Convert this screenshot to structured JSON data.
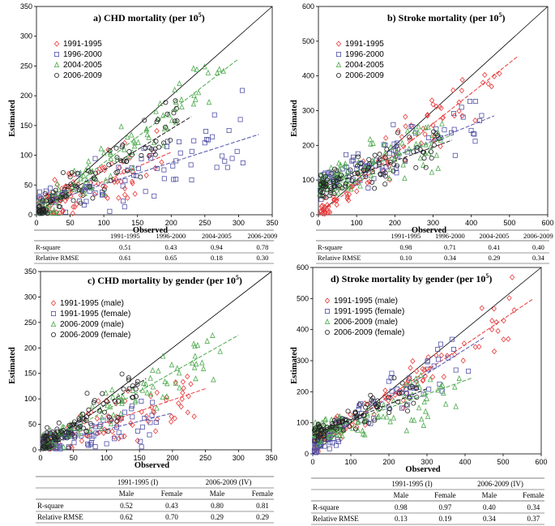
{
  "colors": {
    "c1": "#e8393a",
    "c2": "#5252a8",
    "c3": "#4caa4c",
    "c4": "#222222",
    "grid": "#cccccc"
  },
  "chart_data": [
    {
      "id": "a",
      "type": "scatter",
      "title": "a) CHD mortality  (per 10",
      "title_sup": "5",
      "title_end": ")",
      "xlabel": "Observed",
      "ylabel": "Estimated",
      "xlim": [
        0,
        350
      ],
      "ylim": [
        0,
        350
      ],
      "xticks": [
        "0",
        "50",
        "100",
        "150",
        "200",
        "250",
        "300",
        "350"
      ],
      "yticks": [
        "0",
        "50",
        "100",
        "150",
        "200",
        "250",
        "300",
        "350"
      ],
      "series": [
        {
          "name": "1991-1995",
          "marker": "diamond",
          "color": "#e8393a",
          "fit": [
            0,
            8,
            200,
            105
          ],
          "spread": 22,
          "xmax": 200
        },
        {
          "name": "1996-2000",
          "marker": "square",
          "color": "#5252a8",
          "fit": [
            0,
            15,
            330,
            135
          ],
          "spread": 25,
          "xmax": 330
        },
        {
          "name": "2004-2005",
          "marker": "triangle",
          "color": "#4caa4c",
          "fit": [
            0,
            0,
            300,
            262
          ],
          "spread": 20,
          "xmax": 300
        },
        {
          "name": "2006-2009",
          "marker": "circle",
          "color": "#222222",
          "fit": [
            0,
            5,
            230,
            165
          ],
          "spread": 20,
          "xmax": 230
        }
      ],
      "table": {
        "head": [
          "1991-1995",
          "1996-2000",
          "2004-2005",
          "2006-2009"
        ],
        "rows": [
          {
            "label": "R-square",
            "values": [
              "0.51",
              "0.43",
              "0.94",
              "0.78"
            ]
          },
          {
            "label": "Relative RMSE",
            "values": [
              "0.61",
              "0.65",
              "0.18",
              "0.30"
            ]
          }
        ]
      }
    },
    {
      "id": "b",
      "type": "scatter",
      "title": "b)  Stroke mortality (per 10",
      "title_sup": "5",
      "title_end": ")",
      "xlabel": "Observed",
      "ylabel": "Estimated",
      "xlim": [
        0,
        600
      ],
      "ylim": [
        0,
        600
      ],
      "xticks": [
        "0",
        "100",
        "200",
        "300",
        "400",
        "500",
        "600"
      ],
      "yticks": [
        "0",
        "100",
        "200",
        "300",
        "400",
        "500",
        "600"
      ],
      "series": [
        {
          "name": "1991-1995",
          "marker": "diamond",
          "color": "#e8393a",
          "fit": [
            0,
            0,
            520,
            455
          ],
          "spread": 35,
          "xmax": 520
        },
        {
          "name": "1996-2000",
          "marker": "square",
          "color": "#5252a8",
          "fit": [
            0,
            80,
            460,
            285
          ],
          "spread": 35,
          "xmax": 460
        },
        {
          "name": "2004-2005",
          "marker": "triangle",
          "color": "#4caa4c",
          "fit": [
            0,
            85,
            350,
            230
          ],
          "spread": 35,
          "xmax": 350
        },
        {
          "name": "2006-2009",
          "marker": "circle",
          "color": "#222222",
          "fit": [
            0,
            75,
            350,
            215
          ],
          "spread": 30,
          "xmax": 350
        }
      ],
      "table": {
        "head": [
          "1991-1995",
          "1996-2000",
          "2004-2005",
          "2006-2009"
        ],
        "rows": [
          {
            "label": "R-square",
            "values": [
              "0.98",
              "0.71",
              "0.41",
              "0.40"
            ]
          },
          {
            "label": "Relative RMSE",
            "values": [
              "0.10",
              "0.34",
              "0.29",
              "0.34"
            ]
          }
        ]
      }
    },
    {
      "id": "c",
      "type": "scatter",
      "title": "c)  CHD mortality by gender (per 10",
      "title_sup": "5",
      "title_end": ")",
      "xlabel": "Observed",
      "ylabel": "Estimated",
      "xlim": [
        0,
        350
      ],
      "ylim": [
        0,
        350
      ],
      "xticks": [
        "0",
        "50",
        "100",
        "150",
        "200",
        "250",
        "300",
        "350"
      ],
      "yticks": [
        "0",
        "50",
        "100",
        "150",
        "200",
        "250",
        "300",
        "350"
      ],
      "series": [
        {
          "name": "1991-1995 (male)",
          "marker": "diamond",
          "color": "#e8393a",
          "fit": [
            0,
            10,
            250,
            120
          ],
          "spread": 20,
          "xmax": 250
        },
        {
          "name": "1991-1995 (female)",
          "marker": "square",
          "color": "#5252a8",
          "fit": [
            0,
            8,
            200,
            72
          ],
          "spread": 18,
          "xmax": 200
        },
        {
          "name": "2006-2009 (male)",
          "marker": "triangle",
          "color": "#4caa4c",
          "fit": [
            0,
            5,
            300,
            225
          ],
          "spread": 22,
          "xmax": 300
        },
        {
          "name": "2006-2009 (female)",
          "marker": "circle",
          "color": "#222222",
          "fit": [
            0,
            5,
            160,
            140
          ],
          "spread": 18,
          "xmax": 160
        }
      ],
      "table": {
        "groups": [
          "1991-1995 (I)",
          "2006-2009 (IV)"
        ],
        "head": [
          "Male",
          "Female",
          "Male",
          "Female"
        ],
        "rows": [
          {
            "label": "R-square",
            "values": [
              "0.52",
              "0.43",
              "0.80",
              "0.81"
            ]
          },
          {
            "label": "Relative RMSE",
            "values": [
              "0.62",
              "0.70",
              "0.29",
              "0.29"
            ]
          }
        ]
      }
    },
    {
      "id": "d",
      "type": "scatter",
      "title": "d)  Stroke mortality by gender (per 10",
      "title_sup": "5",
      "title_end": ")",
      "xlabel": "Observed",
      "ylabel": "Estimated",
      "xlim": [
        0,
        600
      ],
      "ylim": [
        0,
        600
      ],
      "xticks": [
        "0",
        "100",
        "200",
        "300",
        "400",
        "500",
        "600"
      ],
      "yticks": [
        "0",
        "100",
        "200",
        "300",
        "400",
        "500",
        "600"
      ],
      "series": [
        {
          "name": "1991-1995 (male)",
          "marker": "diamond",
          "color": "#e8393a",
          "fit": [
            0,
            20,
            580,
            500
          ],
          "spread": 30,
          "xmax": 580
        },
        {
          "name": "1991-1995 (female)",
          "marker": "square",
          "color": "#5252a8",
          "fit": [
            0,
            25,
            450,
            375
          ],
          "spread": 30,
          "xmax": 450
        },
        {
          "name": "2006-2009 (male)",
          "marker": "triangle",
          "color": "#4caa4c",
          "fit": [
            0,
            60,
            420,
            245
          ],
          "spread": 35,
          "xmax": 420
        },
        {
          "name": "2006-2009 (female)",
          "marker": "circle",
          "color": "#222222",
          "fit": [
            0,
            60,
            300,
            210
          ],
          "spread": 25,
          "xmax": 300
        }
      ],
      "table": {
        "groups": [
          "1991-1995 (I)",
          "2006-2009 (IV)"
        ],
        "head": [
          "Male",
          "Female",
          "Male",
          "Female"
        ],
        "rows": [
          {
            "label": "R-square",
            "values": [
              "0.98",
              "0.97",
              "0.40",
              "0.34"
            ]
          },
          {
            "label": "Relative RMSE",
            "values": [
              "0.13",
              "0.19",
              "0.34",
              "0.37"
            ]
          }
        ]
      }
    }
  ]
}
